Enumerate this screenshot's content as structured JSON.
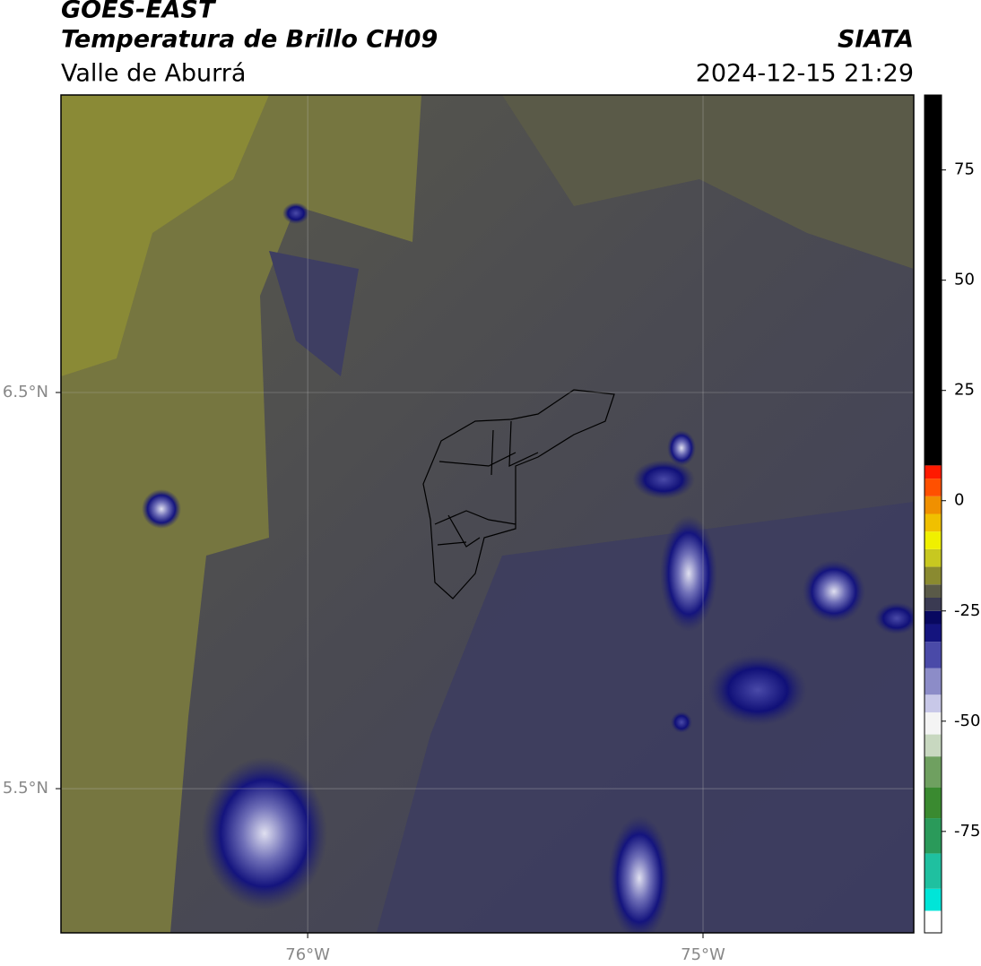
{
  "header": {
    "title": "GOES-EAST",
    "subtitle": "Temperatura de Brillo CH09",
    "region": "Valle de Aburrá",
    "source": "SIATA",
    "datetime": "2024-12-15 21:29"
  },
  "map": {
    "xlim": [
      -76.624,
      -74.467
    ],
    "ylim": [
      5.136,
      7.251
    ],
    "xticks": [
      {
        "value": -76,
        "label": "76°W"
      },
      {
        "value": -75,
        "label": "75°W"
      }
    ],
    "yticks": [
      {
        "value": 6.5,
        "label": "6.5°N"
      },
      {
        "value": 5.5,
        "label": "5.5°N"
      }
    ],
    "grid": true
  },
  "colorbar": {
    "lim": [
      -98,
      92
    ],
    "ticks": [
      75,
      50,
      25,
      0,
      -25,
      -50,
      -75
    ],
    "levels": [
      -98,
      -93,
      -88,
      -80,
      -72,
      -65,
      -58,
      -53,
      -48,
      -44,
      -38,
      -32,
      -28,
      -25,
      -22,
      -19,
      -15,
      -11,
      -7,
      -3,
      1,
      5,
      8,
      92
    ],
    "colors": [
      "#ffffff",
      "#00e5d8",
      "#1fc0a0",
      "#2a9a5a",
      "#3a8a30",
      "#6fa060",
      "#c8d8c0",
      "#f4f4f4",
      "#c8c8e8",
      "#8c8cc8",
      "#4a4aa8",
      "#14147e",
      "#080860",
      "#3a3a52",
      "#5a5a48",
      "#8a8a30",
      "#c8c820",
      "#f0f000",
      "#f0c000",
      "#f09000",
      "#ff5000",
      "#ff1a00",
      "#000000"
    ]
  }
}
